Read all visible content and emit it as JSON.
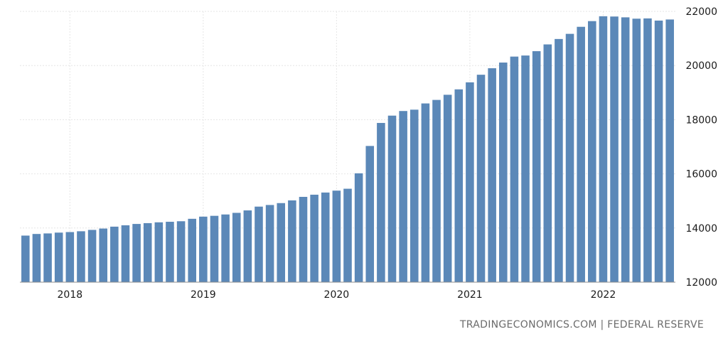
{
  "chart_data": {
    "type": "bar",
    "title": "",
    "xlabel": "",
    "ylabel": "",
    "ylim": [
      12000,
      22000
    ],
    "yticks": [
      12000,
      14000,
      16000,
      18000,
      20000,
      22000
    ],
    "xtick_labels": [
      "2018",
      "2019",
      "2020",
      "2021",
      "2022"
    ],
    "grid": true,
    "bar_color": "#5b88b8",
    "categories": [
      "2017-09",
      "2017-10",
      "2017-11",
      "2017-12",
      "2018-01",
      "2018-02",
      "2018-03",
      "2018-04",
      "2018-05",
      "2018-06",
      "2018-07",
      "2018-08",
      "2018-09",
      "2018-10",
      "2018-11",
      "2018-12",
      "2019-01",
      "2019-02",
      "2019-03",
      "2019-04",
      "2019-05",
      "2019-06",
      "2019-07",
      "2019-08",
      "2019-09",
      "2019-10",
      "2019-11",
      "2019-12",
      "2020-01",
      "2020-02",
      "2020-03",
      "2020-04",
      "2020-05",
      "2020-06",
      "2020-07",
      "2020-08",
      "2020-09",
      "2020-10",
      "2020-11",
      "2020-12",
      "2021-01",
      "2021-02",
      "2021-03",
      "2021-04",
      "2021-05",
      "2021-06",
      "2021-07",
      "2021-08",
      "2021-09",
      "2021-10",
      "2021-11",
      "2021-12",
      "2022-01",
      "2022-02",
      "2022-03",
      "2022-04",
      "2022-05",
      "2022-06",
      "2022-07"
    ],
    "values": [
      13720,
      13780,
      13800,
      13830,
      13850,
      13880,
      13930,
      13980,
      14050,
      14100,
      14150,
      14180,
      14210,
      14230,
      14250,
      14340,
      14420,
      14450,
      14500,
      14560,
      14650,
      14790,
      14850,
      14920,
      15020,
      15150,
      15230,
      15310,
      15380,
      15450,
      16020,
      17030,
      17880,
      18150,
      18320,
      18370,
      18600,
      18730,
      18920,
      19120,
      19380,
      19660,
      19900,
      20110,
      20330,
      20370,
      20530,
      20780,
      20980,
      21170,
      21430,
      21640,
      21820,
      21810,
      21780,
      21730,
      21740,
      21660,
      21700
    ]
  },
  "source": "TRADINGECONOMICS.COM | FEDERAL RESERVE"
}
